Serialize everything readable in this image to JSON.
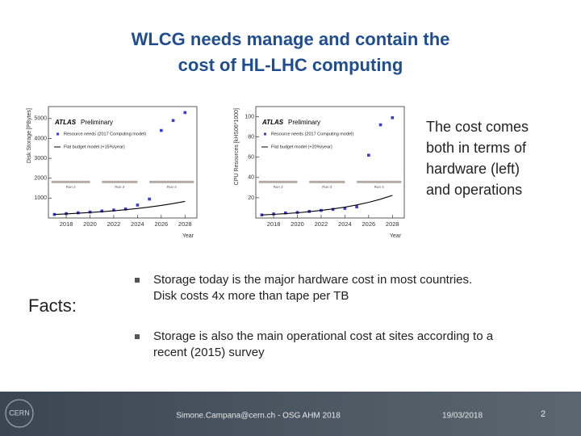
{
  "title_lines": [
    "WLCG needs manage and contain the",
    "cost of HL-LHC computing"
  ],
  "side_text_lines": [
    "The cost comes",
    "both in terms of",
    "hardware (left)",
    "and operations"
  ],
  "facts_label": "Facts:",
  "bullets": [
    [
      "Storage today is the major hardware cost in most countries.",
      "Disk costs 4x more than tape per TB"
    ],
    [
      "Storage is also the main operational cost at sites according to a",
      "recent (2015) survey"
    ]
  ],
  "footer": {
    "logo": "CERN",
    "author": "Simone.Campana@cern.ch - OSG AHM 2018",
    "date": "19/03/2018",
    "page": "2"
  },
  "figures": [
    {
      "type": "scatter",
      "brand": "ATLAS",
      "status": "Preliminary",
      "y_label": "Disk Storage [PBytes]",
      "x_label": "Year",
      "run_labels": [
        "Run 2",
        "Run 3",
        "Run 4"
      ],
      "xlim": [
        2016.5,
        2029
      ],
      "xticks": [
        2018,
        2020,
        2022,
        2024,
        2026,
        2028
      ],
      "ylim": [
        0,
        5600
      ],
      "yticks": [
        1000,
        2000,
        3000,
        4000,
        5000
      ],
      "series": [
        {
          "name": "Resource needs (2017 Computing model)",
          "color": "#3a3ad6",
          "marker": "square",
          "x": [
            2017,
            2018,
            2019,
            2020,
            2021,
            2022,
            2023,
            2024,
            2025,
            2026,
            2027,
            2028
          ],
          "values": [
            180,
            220,
            260,
            300,
            350,
            400,
            450,
            650,
            950,
            4400,
            4900,
            5300
          ]
        },
        {
          "name": "Flat budget model (+15%/year)",
          "color": "#000000",
          "marker": "line",
          "x": [
            2017,
            2018,
            2019,
            2020,
            2021,
            2022,
            2023,
            2024,
            2025,
            2026,
            2027,
            2028
          ],
          "values": [
            180,
            207,
            238,
            274,
            315,
            362,
            416,
            479,
            550,
            633,
            728,
            837
          ]
        }
      ]
    },
    {
      "type": "scatter",
      "brand": "ATLAS",
      "status": "Preliminary",
      "y_label": "CPU Resources [kHS06*1000]",
      "x_label": "Year",
      "run_labels": [
        "Run 2",
        "Run 3",
        "Run 4"
      ],
      "xlim": [
        2016.5,
        2029
      ],
      "xticks": [
        2018,
        2020,
        2022,
        2024,
        2026,
        2028
      ],
      "ylim": [
        0,
        110
      ],
      "yticks": [
        20,
        40,
        60,
        80,
        100
      ],
      "series": [
        {
          "name": "Resource needs (2017 Computing model)",
          "color": "#3a3ad6",
          "marker": "square",
          "x": [
            2017,
            2018,
            2019,
            2020,
            2021,
            2022,
            2023,
            2024,
            2025,
            2026,
            2027,
            2028
          ],
          "values": [
            3,
            4,
            5,
            5.5,
            6.5,
            7.5,
            8.5,
            9.5,
            11,
            62,
            92,
            99
          ]
        },
        {
          "name": "Flat budget model (+20%/year)",
          "color": "#000000",
          "marker": "line",
          "x": [
            2017,
            2018,
            2019,
            2020,
            2021,
            2022,
            2023,
            2024,
            2025,
            2026,
            2027,
            2028
          ],
          "values": [
            3,
            3.6,
            4.3,
            5.2,
            6.2,
            7.5,
            9,
            10.7,
            12.9,
            15.5,
            18.6,
            22.3
          ]
        }
      ]
    }
  ]
}
